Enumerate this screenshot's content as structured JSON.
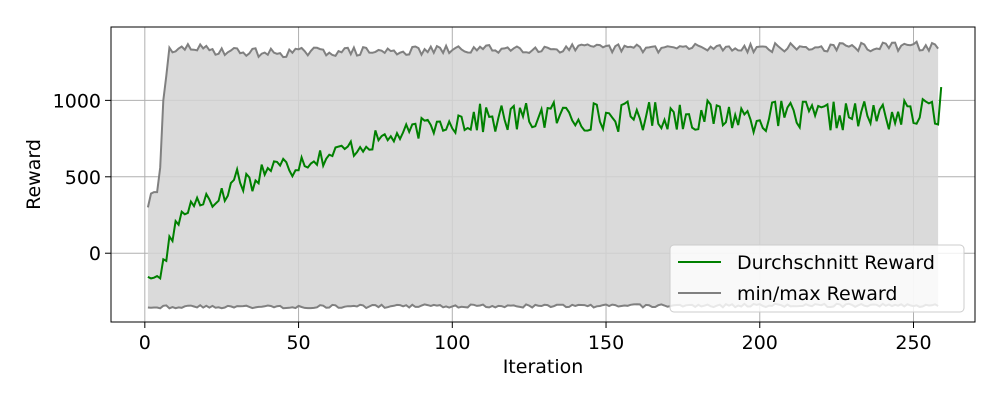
{
  "chart_data": {
    "type": "line",
    "xlabel": "Iteration",
    "ylabel": "Reward",
    "xlim": [
      -11,
      270
    ],
    "ylim": [
      -450,
      1480
    ],
    "x_ticks": [
      0,
      50,
      100,
      150,
      200,
      250
    ],
    "y_ticks": [
      0,
      500,
      1000
    ],
    "x_tick_labels": [
      "0",
      "50",
      "100",
      "150",
      "200",
      "250"
    ],
    "y_tick_labels": [
      "0",
      "500",
      "1000"
    ],
    "grid": true,
    "legend_position": "lower-right",
    "colors": {
      "mean": "#008000",
      "minmax": "#808080",
      "band": "#d3d3d3",
      "grid": "#b0b0b0"
    },
    "legend": {
      "mean_label": "Durchschnitt Reward",
      "minmax_label": "min/max Reward"
    },
    "anchors": {
      "mean": [
        [
          1,
          -155
        ],
        [
          2,
          -165
        ],
        [
          3,
          -160
        ],
        [
          4,
          -150
        ],
        [
          5,
          -165
        ],
        [
          6,
          -40
        ],
        [
          7,
          -50
        ],
        [
          8,
          110
        ],
        [
          9,
          80
        ],
        [
          10,
          210
        ],
        [
          12,
          230
        ],
        [
          14,
          290
        ],
        [
          16,
          330
        ],
        [
          18,
          350
        ],
        [
          20,
          380
        ],
        [
          22,
          320
        ],
        [
          24,
          400
        ],
        [
          26,
          350
        ],
        [
          28,
          450
        ],
        [
          30,
          520
        ],
        [
          32,
          460
        ],
        [
          34,
          500
        ],
        [
          36,
          440
        ],
        [
          38,
          560
        ],
        [
          40,
          540
        ],
        [
          42,
          580
        ],
        [
          44,
          550
        ],
        [
          46,
          620
        ],
        [
          48,
          550
        ],
        [
          50,
          600
        ],
        [
          55,
          620
        ],
        [
          60,
          640
        ],
        [
          65,
          680
        ],
        [
          70,
          700
        ],
        [
          75,
          740
        ],
        [
          80,
          760
        ],
        [
          85,
          780
        ],
        [
          90,
          820
        ],
        [
          95,
          840
        ],
        [
          100,
          870
        ],
        [
          110,
          880
        ],
        [
          120,
          880
        ],
        [
          130,
          900
        ],
        [
          140,
          900
        ],
        [
          150,
          890
        ],
        [
          160,
          900
        ],
        [
          170,
          900
        ],
        [
          180,
          900
        ],
        [
          190,
          900
        ],
        [
          200,
          890
        ],
        [
          210,
          900
        ],
        [
          220,
          890
        ],
        [
          230,
          900
        ],
        [
          240,
          900
        ],
        [
          250,
          905
        ],
        [
          258,
          940
        ],
        [
          259,
          990
        ]
      ],
      "max": [
        [
          1,
          300
        ],
        [
          2,
          390
        ],
        [
          3,
          400
        ],
        [
          4,
          400
        ],
        [
          5,
          560
        ],
        [
          6,
          1000
        ],
        [
          7,
          1160
        ],
        [
          8,
          1360
        ],
        [
          9,
          1290
        ],
        [
          10,
          1310
        ],
        [
          12,
          1340
        ],
        [
          15,
          1350
        ],
        [
          20,
          1330
        ],
        [
          30,
          1320
        ],
        [
          40,
          1310
        ],
        [
          60,
          1320
        ],
        [
          80,
          1320
        ],
        [
          100,
          1330
        ],
        [
          120,
          1340
        ],
        [
          140,
          1340
        ],
        [
          160,
          1340
        ],
        [
          180,
          1345
        ],
        [
          200,
          1345
        ],
        [
          220,
          1345
        ],
        [
          240,
          1350
        ],
        [
          250,
          1355
        ],
        [
          258,
          1350
        ]
      ],
      "min": [
        [
          1,
          -350
        ],
        [
          50,
          -350
        ],
        [
          100,
          -345
        ],
        [
          150,
          -345
        ],
        [
          200,
          -342
        ],
        [
          258,
          -340
        ]
      ]
    },
    "series": [
      {
        "name": "Durchschnitt Reward",
        "role": "mean",
        "x_range": [
          1,
          259
        ],
        "approximate_values": "see anchors.mean"
      },
      {
        "name": "min/max Reward",
        "role": "max",
        "x_range": [
          1,
          258
        ],
        "approximate_values": "see anchors.max"
      },
      {
        "role": "min",
        "x_range": [
          1,
          258
        ],
        "approximate_values": "see anchors.min"
      }
    ]
  }
}
